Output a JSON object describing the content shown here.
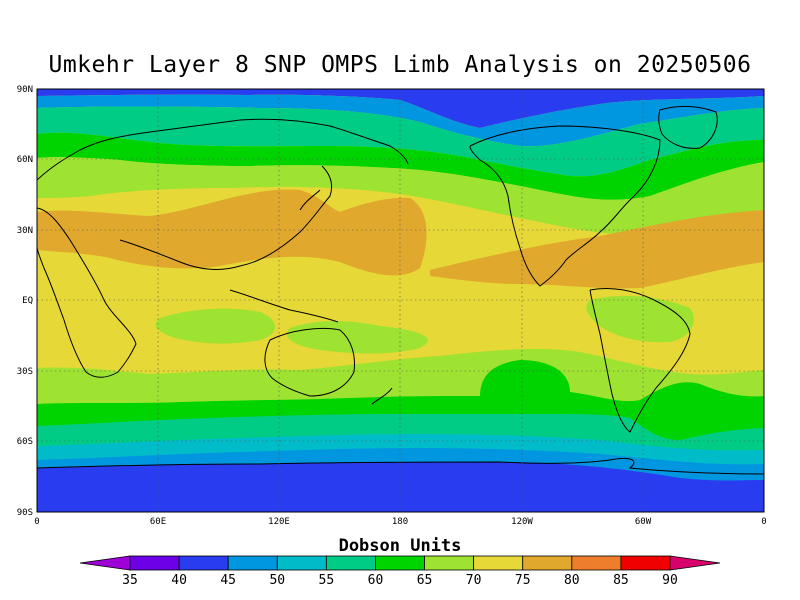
{
  "title": "Umkehr Layer 8 SNP OMPS Limb Analysis on 20250506",
  "legend_title": "Dobson Units",
  "lat_labels": [
    "90N",
    "60N",
    "30N",
    "EQ",
    "30S",
    "60S",
    "90S"
  ],
  "lon_labels": [
    "0",
    "60E",
    "120E",
    "180",
    "120W",
    "60W",
    "0"
  ],
  "colorbar": {
    "levels": [
      "35",
      "40",
      "45",
      "50",
      "55",
      "60",
      "65",
      "70",
      "75",
      "80",
      "85",
      "90"
    ],
    "colors": [
      "#9e00d8",
      "#6e00e8",
      "#2a3cf0",
      "#0097e0",
      "#00bcc8",
      "#00cc86",
      "#00d400",
      "#9ee232",
      "#e6d836",
      "#e0a82c",
      "#ee7e2c",
      "#f00000",
      "#d8006a"
    ]
  },
  "chart_data": {
    "type": "heatmap",
    "title": "Umkehr Layer 8 SNP OMPS Limb Analysis on 20250506",
    "colorbar_label": "Dobson Units",
    "x_range": [
      "0",
      "0"
    ],
    "y_range": [
      "90S",
      "90N"
    ],
    "x_ticks": [
      "0",
      "60E",
      "120E",
      "180",
      "120W",
      "60W",
      "0"
    ],
    "y_ticks": [
      "90N",
      "60N",
      "30N",
      "EQ",
      "30S",
      "60S",
      "90S"
    ],
    "grid": true,
    "zonal_bands": [
      {
        "lat": "85N",
        "value": 48
      },
      {
        "lat": "70N",
        "value": 67
      },
      {
        "lat": "55N",
        "value": 70
      },
      {
        "lat": "40N",
        "value": 73
      },
      {
        "lat": "30N",
        "value": 76
      },
      {
        "lat": "20N",
        "value": 74
      },
      {
        "lat": "EQ",
        "value": 73
      },
      {
        "lat": "15S",
        "value": 73
      },
      {
        "lat": "30S",
        "value": 70
      },
      {
        "lat": "45S",
        "value": 63
      },
      {
        "lat": "55S",
        "value": 57
      },
      {
        "lat": "65S",
        "value": 52
      },
      {
        "lat": "75S",
        "value": 46
      },
      {
        "lat": "85S",
        "value": 44
      }
    ]
  }
}
